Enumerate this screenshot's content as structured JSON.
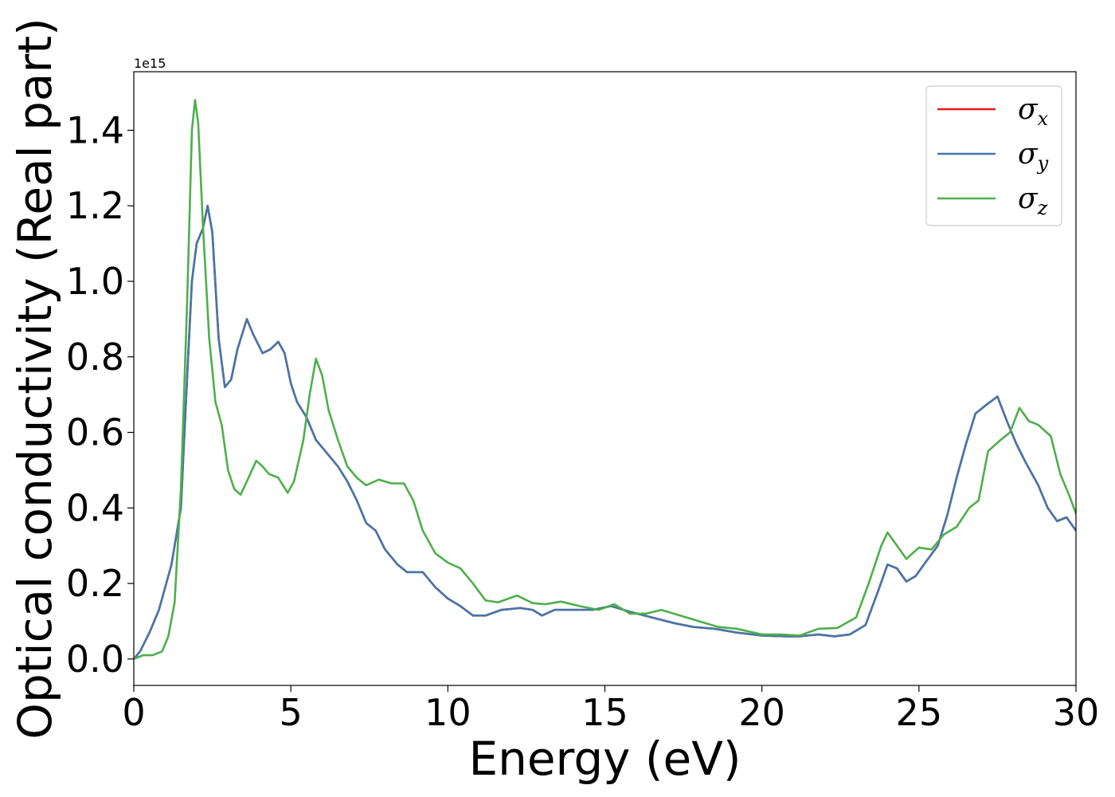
{
  "chart_data": {
    "type": "line",
    "xlabel": "Energy (eV)",
    "ylabel": "Optical conductivity (Real part)",
    "y_offset_text": "1e15",
    "xlim": [
      0,
      30
    ],
    "ylim": [
      -0.07,
      1.555
    ],
    "xticks": [
      0,
      5,
      10,
      15,
      20,
      25,
      30
    ],
    "xtick_labels": [
      "0",
      "5",
      "10",
      "15",
      "20",
      "25",
      "30"
    ],
    "yticks": [
      0.0,
      0.2,
      0.4,
      0.6,
      0.8,
      1.0,
      1.2,
      1.4
    ],
    "ytick_labels": [
      "0.0",
      "0.2",
      "0.4",
      "0.6",
      "0.8",
      "1.0",
      "1.2",
      "1.4"
    ],
    "grid": false,
    "legend_position": "top-right",
    "series": [
      {
        "name": "σx",
        "symbol": "σ",
        "subscript": "x",
        "color": "#e41a1c",
        "points": [
          [
            0,
            0.0
          ],
          [
            0.2,
            0.02
          ],
          [
            0.5,
            0.07
          ],
          [
            0.8,
            0.13
          ],
          [
            1.2,
            0.25
          ],
          [
            1.5,
            0.4
          ],
          [
            1.7,
            0.75
          ],
          [
            1.85,
            1.0
          ],
          [
            2.0,
            1.1
          ],
          [
            2.2,
            1.14
          ],
          [
            2.35,
            1.2
          ],
          [
            2.5,
            1.13
          ],
          [
            2.7,
            0.85
          ],
          [
            2.9,
            0.72
          ],
          [
            3.1,
            0.74
          ],
          [
            3.3,
            0.82
          ],
          [
            3.6,
            0.9
          ],
          [
            3.8,
            0.86
          ],
          [
            4.1,
            0.81
          ],
          [
            4.35,
            0.82
          ],
          [
            4.6,
            0.84
          ],
          [
            4.8,
            0.81
          ],
          [
            5.0,
            0.73
          ],
          [
            5.2,
            0.68
          ],
          [
            5.5,
            0.64
          ],
          [
            5.8,
            0.58
          ],
          [
            6.1,
            0.55
          ],
          [
            6.5,
            0.51
          ],
          [
            6.8,
            0.47
          ],
          [
            7.1,
            0.42
          ],
          [
            7.4,
            0.36
          ],
          [
            7.7,
            0.34
          ],
          [
            8.0,
            0.29
          ],
          [
            8.4,
            0.25
          ],
          [
            8.7,
            0.23
          ],
          [
            9.2,
            0.23
          ],
          [
            9.6,
            0.19
          ],
          [
            10.0,
            0.16
          ],
          [
            10.4,
            0.14
          ],
          [
            10.8,
            0.115
          ],
          [
            11.2,
            0.115
          ],
          [
            11.7,
            0.13
          ],
          [
            12.3,
            0.135
          ],
          [
            12.7,
            0.13
          ],
          [
            13.0,
            0.115
          ],
          [
            13.4,
            0.13
          ],
          [
            14.0,
            0.13
          ],
          [
            14.6,
            0.13
          ],
          [
            15.2,
            0.14
          ],
          [
            15.8,
            0.125
          ],
          [
            16.5,
            0.11
          ],
          [
            17.2,
            0.095
          ],
          [
            17.8,
            0.085
          ],
          [
            18.5,
            0.08
          ],
          [
            19.2,
            0.07
          ],
          [
            20.0,
            0.062
          ],
          [
            20.8,
            0.06
          ],
          [
            21.2,
            0.06
          ],
          [
            21.8,
            0.065
          ],
          [
            22.3,
            0.06
          ],
          [
            22.8,
            0.065
          ],
          [
            23.3,
            0.09
          ],
          [
            23.7,
            0.18
          ],
          [
            24.0,
            0.25
          ],
          [
            24.3,
            0.24
          ],
          [
            24.6,
            0.205
          ],
          [
            24.9,
            0.22
          ],
          [
            25.2,
            0.255
          ],
          [
            25.6,
            0.3
          ],
          [
            25.9,
            0.38
          ],
          [
            26.2,
            0.48
          ],
          [
            26.5,
            0.57
          ],
          [
            26.8,
            0.65
          ],
          [
            27.1,
            0.67
          ],
          [
            27.5,
            0.695
          ],
          [
            27.8,
            0.63
          ],
          [
            28.1,
            0.57
          ],
          [
            28.4,
            0.52
          ],
          [
            28.8,
            0.46
          ],
          [
            29.1,
            0.4
          ],
          [
            29.4,
            0.365
          ],
          [
            29.7,
            0.375
          ],
          [
            30.0,
            0.34
          ]
        ]
      },
      {
        "name": "σy",
        "symbol": "σ",
        "subscript": "y",
        "color": "#4477aa",
        "points": [
          [
            0,
            0.0
          ],
          [
            0.2,
            0.02
          ],
          [
            0.5,
            0.07
          ],
          [
            0.8,
            0.13
          ],
          [
            1.2,
            0.25
          ],
          [
            1.5,
            0.4
          ],
          [
            1.7,
            0.75
          ],
          [
            1.85,
            1.0
          ],
          [
            2.0,
            1.1
          ],
          [
            2.2,
            1.14
          ],
          [
            2.35,
            1.2
          ],
          [
            2.5,
            1.13
          ],
          [
            2.7,
            0.85
          ],
          [
            2.9,
            0.72
          ],
          [
            3.1,
            0.74
          ],
          [
            3.3,
            0.82
          ],
          [
            3.6,
            0.9
          ],
          [
            3.8,
            0.86
          ],
          [
            4.1,
            0.81
          ],
          [
            4.35,
            0.82
          ],
          [
            4.6,
            0.84
          ],
          [
            4.8,
            0.81
          ],
          [
            5.0,
            0.73
          ],
          [
            5.2,
            0.68
          ],
          [
            5.5,
            0.64
          ],
          [
            5.8,
            0.58
          ],
          [
            6.1,
            0.55
          ],
          [
            6.5,
            0.51
          ],
          [
            6.8,
            0.47
          ],
          [
            7.1,
            0.42
          ],
          [
            7.4,
            0.36
          ],
          [
            7.7,
            0.34
          ],
          [
            8.0,
            0.29
          ],
          [
            8.4,
            0.25
          ],
          [
            8.7,
            0.23
          ],
          [
            9.2,
            0.23
          ],
          [
            9.6,
            0.19
          ],
          [
            10.0,
            0.16
          ],
          [
            10.4,
            0.14
          ],
          [
            10.8,
            0.115
          ],
          [
            11.2,
            0.115
          ],
          [
            11.7,
            0.13
          ],
          [
            12.3,
            0.135
          ],
          [
            12.7,
            0.13
          ],
          [
            13.0,
            0.115
          ],
          [
            13.4,
            0.13
          ],
          [
            14.0,
            0.13
          ],
          [
            14.6,
            0.13
          ],
          [
            15.2,
            0.14
          ],
          [
            15.8,
            0.125
          ],
          [
            16.5,
            0.11
          ],
          [
            17.2,
            0.095
          ],
          [
            17.8,
            0.085
          ],
          [
            18.5,
            0.08
          ],
          [
            19.2,
            0.07
          ],
          [
            20.0,
            0.062
          ],
          [
            20.8,
            0.06
          ],
          [
            21.2,
            0.06
          ],
          [
            21.8,
            0.065
          ],
          [
            22.3,
            0.06
          ],
          [
            22.8,
            0.065
          ],
          [
            23.3,
            0.09
          ],
          [
            23.7,
            0.18
          ],
          [
            24.0,
            0.25
          ],
          [
            24.3,
            0.24
          ],
          [
            24.6,
            0.205
          ],
          [
            24.9,
            0.22
          ],
          [
            25.2,
            0.255
          ],
          [
            25.6,
            0.3
          ],
          [
            25.9,
            0.38
          ],
          [
            26.2,
            0.48
          ],
          [
            26.5,
            0.57
          ],
          [
            26.8,
            0.65
          ],
          [
            27.1,
            0.67
          ],
          [
            27.5,
            0.695
          ],
          [
            27.8,
            0.63
          ],
          [
            28.1,
            0.57
          ],
          [
            28.4,
            0.52
          ],
          [
            28.8,
            0.46
          ],
          [
            29.1,
            0.4
          ],
          [
            29.4,
            0.365
          ],
          [
            29.7,
            0.375
          ],
          [
            30.0,
            0.34
          ]
        ]
      },
      {
        "name": "σz",
        "symbol": "σ",
        "subscript": "z",
        "color": "#4daf4a",
        "points": [
          [
            0,
            0.0
          ],
          [
            0.3,
            0.01
          ],
          [
            0.6,
            0.01
          ],
          [
            0.9,
            0.02
          ],
          [
            1.1,
            0.06
          ],
          [
            1.3,
            0.15
          ],
          [
            1.5,
            0.45
          ],
          [
            1.7,
            0.95
          ],
          [
            1.85,
            1.4
          ],
          [
            1.95,
            1.48
          ],
          [
            2.05,
            1.42
          ],
          [
            2.2,
            1.15
          ],
          [
            2.4,
            0.85
          ],
          [
            2.6,
            0.68
          ],
          [
            2.8,
            0.62
          ],
          [
            3.0,
            0.5
          ],
          [
            3.2,
            0.45
          ],
          [
            3.4,
            0.435
          ],
          [
            3.6,
            0.47
          ],
          [
            3.9,
            0.525
          ],
          [
            4.1,
            0.51
          ],
          [
            4.3,
            0.49
          ],
          [
            4.6,
            0.48
          ],
          [
            4.9,
            0.44
          ],
          [
            5.1,
            0.47
          ],
          [
            5.4,
            0.58
          ],
          [
            5.6,
            0.7
          ],
          [
            5.8,
            0.795
          ],
          [
            6.0,
            0.75
          ],
          [
            6.2,
            0.66
          ],
          [
            6.5,
            0.58
          ],
          [
            6.8,
            0.51
          ],
          [
            7.1,
            0.48
          ],
          [
            7.4,
            0.46
          ],
          [
            7.8,
            0.475
          ],
          [
            8.2,
            0.465
          ],
          [
            8.6,
            0.465
          ],
          [
            8.9,
            0.42
          ],
          [
            9.2,
            0.34
          ],
          [
            9.6,
            0.28
          ],
          [
            10.0,
            0.255
          ],
          [
            10.4,
            0.24
          ],
          [
            10.8,
            0.2
          ],
          [
            11.2,
            0.155
          ],
          [
            11.6,
            0.15
          ],
          [
            12.2,
            0.168
          ],
          [
            12.7,
            0.148
          ],
          [
            13.1,
            0.145
          ],
          [
            13.6,
            0.152
          ],
          [
            14.2,
            0.14
          ],
          [
            14.8,
            0.13
          ],
          [
            15.3,
            0.145
          ],
          [
            15.8,
            0.12
          ],
          [
            16.3,
            0.12
          ],
          [
            16.8,
            0.13
          ],
          [
            17.4,
            0.115
          ],
          [
            18.0,
            0.1
          ],
          [
            18.6,
            0.085
          ],
          [
            19.2,
            0.08
          ],
          [
            20.0,
            0.065
          ],
          [
            20.6,
            0.065
          ],
          [
            21.2,
            0.062
          ],
          [
            21.8,
            0.08
          ],
          [
            22.4,
            0.082
          ],
          [
            23.0,
            0.11
          ],
          [
            23.4,
            0.2
          ],
          [
            23.8,
            0.3
          ],
          [
            24.0,
            0.335
          ],
          [
            24.3,
            0.3
          ],
          [
            24.6,
            0.265
          ],
          [
            25.0,
            0.295
          ],
          [
            25.4,
            0.29
          ],
          [
            25.8,
            0.33
          ],
          [
            26.2,
            0.35
          ],
          [
            26.6,
            0.4
          ],
          [
            26.9,
            0.42
          ],
          [
            27.2,
            0.55
          ],
          [
            27.6,
            0.58
          ],
          [
            27.9,
            0.6
          ],
          [
            28.2,
            0.665
          ],
          [
            28.5,
            0.63
          ],
          [
            28.8,
            0.62
          ],
          [
            29.2,
            0.59
          ],
          [
            29.5,
            0.49
          ],
          [
            29.8,
            0.43
          ],
          [
            30.0,
            0.385
          ]
        ]
      }
    ]
  }
}
